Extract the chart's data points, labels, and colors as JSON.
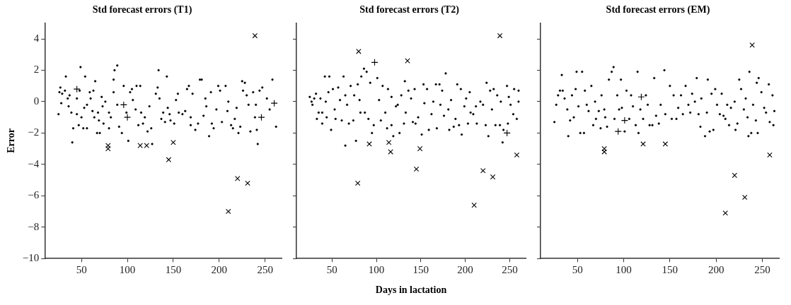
{
  "chart_data": [
    {
      "type": "scatter",
      "title": "Std forecast errors (T1)",
      "ylabel": "Error",
      "xlim": [
        10,
        268
      ],
      "xticks": [
        50,
        100,
        150,
        200,
        250
      ],
      "ylim": [
        -10,
        5
      ],
      "yticks": [
        -10,
        -8,
        -6,
        -4,
        -2,
        0,
        2,
        4
      ],
      "grid": false,
      "legend": false,
      "series": [
        {
          "color": "#000000",
          "marker": "circle",
          "x": [
            25,
            27,
            26,
            29,
            28,
            33,
            32,
            35,
            36,
            37,
            39,
            40,
            41,
            45,
            45,
            47,
            49,
            48,
            50,
            52,
            53,
            54,
            56,
            56,
            59,
            60,
            62,
            63,
            64,
            65,
            67,
            68,
            69,
            70,
            72,
            73,
            74,
            76,
            80,
            80,
            82,
            85,
            85,
            86,
            89,
            89,
            91,
            94,
            96,
            99,
            101,
            103,
            105,
            106,
            109,
            110,
            112,
            114,
            115,
            117,
            119,
            122,
            124,
            126,
            127,
            131,
            134,
            133,
            135,
            137,
            139,
            141,
            143,
            144,
            146,
            147,
            151,
            153,
            155,
            156,
            160,
            163,
            165,
            167,
            169,
            169,
            171,
            174,
            177,
            179,
            181,
            183,
            185,
            186,
            189,
            191,
            192,
            194,
            197,
            199,
            201,
            203,
            207,
            209,
            210,
            213,
            215,
            217,
            219,
            221,
            223,
            225,
            226,
            228,
            230,
            232,
            234,
            237,
            239,
            240,
            241,
            242,
            244,
            247,
            252,
            255,
            258,
            262
          ],
          "values": [
            -0.8,
            0.9,
            0.6,
            0.5,
            -0.1,
            1.6,
            0.7,
            0.2,
            -0.3,
            0.4,
            -0.7,
            -2.6,
            -1.7,
            0.2,
            -0.8,
            -1.5,
            2.2,
            0.7,
            -1.0,
            -1.7,
            -0.4,
            1.6,
            -0.2,
            -1.7,
            0.6,
            0.2,
            -0.6,
            0.7,
            -1.0,
            1.3,
            -2.0,
            -0.7,
            -1.2,
            -2.0,
            0.3,
            -0.3,
            -1.4,
            0.0,
            -0.7,
            -1.7,
            -1.0,
            1.4,
            0.6,
            2.0,
            2.3,
            -0.2,
            -1.6,
            -2.0,
            1.0,
            -0.7,
            -2.5,
            0.6,
            0.8,
            0.1,
            -0.5,
            1.0,
            -1.5,
            1.0,
            -0.7,
            -1.4,
            -1.0,
            -1.9,
            -0.3,
            -1.7,
            -2.7,
            0.5,
            2.0,
            0.9,
            0.2,
            -1.1,
            -0.7,
            -1.3,
            1.6,
            -0.4,
            -0.8,
            -1.2,
            -1.4,
            0.1,
            0.5,
            -0.7,
            -0.8,
            -0.6,
            0.8,
            1.0,
            -1.0,
            -1.5,
            0.5,
            -1.8,
            -1.4,
            1.4,
            1.4,
            -0.9,
            0.2,
            -0.3,
            -2.2,
            0.6,
            -1.4,
            -1.7,
            -0.5,
            1.0,
            0.7,
            -1.3,
            1.0,
            -0.6,
            0.0,
            -1.5,
            -1.7,
            -1.1,
            -0.4,
            -2.0,
            -1.6,
            1.3,
            0.7,
            1.2,
            0.4,
            -0.2,
            -1.9,
            0.6,
            -1.0,
            -0.2,
            -1.8,
            -2.7,
            0.7,
            0.9,
            0.2,
            -0.5,
            1.4,
            -1.6
          ]
        },
        {
          "color": "#000000",
          "marker": "cross",
          "x": [
            79,
            79,
            114,
            121,
            150,
            145,
            210,
            220,
            231,
            239
          ],
          "values": [
            -2.8,
            -3.0,
            -2.8,
            -2.8,
            -2.6,
            -3.7,
            -7.0,
            -4.9,
            -5.2,
            4.2
          ]
        },
        {
          "color": "#000000",
          "x": [
            45,
            96,
            100,
            246,
            260
          ],
          "values": [
            0.8,
            -0.2,
            -1.0,
            -1.0,
            -0.1
          ]
        }
      ]
    },
    {
      "type": "scatter",
      "title": "Std forecast errors (T2)",
      "xlabel": "Days in lactation",
      "xlim": [
        10,
        268
      ],
      "xticks": [
        50,
        100,
        150,
        200,
        250
      ],
      "ylim": [
        -10,
        5
      ],
      "yticks": [
        -10,
        -8,
        -6,
        -4,
        -2,
        0,
        2,
        4
      ],
      "grid": false,
      "legend": false,
      "tick_labels": "x",
      "series": [
        {
          "color": "#000000",
          "marker": "circle",
          "x": [
            25,
            27,
            28,
            30,
            32,
            33,
            35,
            37,
            39,
            39,
            42,
            43,
            44,
            46,
            47,
            49,
            51,
            53,
            54,
            57,
            59,
            61,
            63,
            65,
            65,
            67,
            69,
            71,
            74,
            75,
            77,
            79,
            81,
            82,
            83,
            86,
            89,
            87,
            91,
            93,
            95,
            97,
            101,
            103,
            105,
            107,
            110,
            112,
            113,
            117,
            117,
            119,
            122,
            124,
            126,
            128,
            131,
            132,
            133,
            136,
            139,
            141,
            143,
            144,
            147,
            151,
            153,
            154,
            157,
            159,
            162,
            164,
            167,
            168,
            171,
            172,
            174,
            176,
            178,
            181,
            182,
            184,
            187,
            189,
            191,
            193,
            195,
            196,
            199,
            201,
            203,
            205,
            206,
            209,
            212,
            213,
            217,
            220,
            223,
            224,
            226,
            228,
            230,
            232,
            234,
            236,
            239,
            240,
            242,
            243,
            247,
            248,
            249,
            251,
            254,
            255,
            258,
            260,
            260
          ],
          "values": [
            0.3,
            0.0,
            -0.2,
            0.2,
            0.5,
            -1.1,
            -0.7,
            0.2,
            -0.7,
            -1.4,
            1.6,
            0.0,
            -1.0,
            0.6,
            1.6,
            -1.8,
            0.8,
            -0.5,
            -1.1,
            0.9,
            0.1,
            -1.2,
            1.6,
            0.4,
            -2.8,
            -0.2,
            -1.4,
            1.0,
            -1.2,
            0.4,
            -2.5,
            1.1,
            0.1,
            -0.7,
            1.6,
            2.1,
            1.9,
            -0.7,
            -1.1,
            1.2,
            -2.0,
            -1.5,
            1.5,
            0.1,
            -1.2,
            1.0,
            -0.7,
            -1.7,
            0.8,
            -1.5,
            0.3,
            -2.2,
            -0.3,
            -0.2,
            -2.0,
            0.4,
            -1.4,
            1.3,
            -0.7,
            0.7,
            0.2,
            -1.3,
            0.8,
            -1.4,
            -1.0,
            -2.1,
            1.1,
            -0.1,
            0.8,
            -1.8,
            -0.8,
            0.0,
            1.1,
            -1.7,
            1.1,
            -0.2,
            0.7,
            -0.9,
            1.8,
            -0.5,
            -1.8,
            0.1,
            -1.6,
            -1.1,
            1.1,
            -1.5,
            0.8,
            -2.1,
            -0.3,
            0.2,
            -1.4,
            0.6,
            -0.7,
            -0.8,
            -0.3,
            -1.4,
            0.0,
            -0.2,
            -1.5,
            1.2,
            -2.2,
            0.7,
            -0.5,
            0.8,
            -1.5,
            0.4,
            -1.5,
            0.0,
            -2.6,
            -1.8,
            1.0,
            -1.4,
            0.3,
            -0.2,
            -0.8,
            0.8,
            -1.1,
            0.7,
            0.0
          ]
        },
        {
          "color": "#000000",
          "marker": "cross",
          "x": [
            80,
            135,
            239,
            92,
            114,
            116,
            149,
            258,
            145,
            220,
            231,
            79,
            210
          ],
          "values": [
            3.2,
            2.6,
            4.2,
            -2.7,
            -2.6,
            -3.2,
            -3.0,
            -3.4,
            -4.3,
            -4.4,
            -4.8,
            -5.2,
            -6.6
          ]
        },
        {
          "color": "#000000",
          "x": [
            98,
            247
          ],
          "values": [
            2.5,
            -2.0
          ]
        }
      ]
    },
    {
      "type": "scatter",
      "title": "Std forecast errors (EM)",
      "xlim": [
        10,
        268
      ],
      "xticks": [
        50,
        100,
        150,
        200,
        250
      ],
      "ylim": [
        -10,
        5
      ],
      "yticks": [
        -10,
        -8,
        -6,
        -4,
        -2,
        0,
        2,
        4
      ],
      "grid": false,
      "legend": false,
      "tick_labels": "x",
      "series": [
        {
          "color": "#000000",
          "marker": "circle",
          "x": [
            25,
            27,
            29,
            31,
            33,
            34,
            36,
            39,
            40,
            42,
            44,
            46,
            48,
            49,
            51,
            53,
            55,
            57,
            58,
            60,
            62,
            65,
            67,
            69,
            70,
            73,
            75,
            76,
            79,
            80,
            82,
            84,
            87,
            89,
            90,
            93,
            95,
            97,
            98,
            101,
            103,
            106,
            108,
            110,
            113,
            115,
            116,
            118,
            121,
            124,
            126,
            128,
            131,
            133,
            135,
            138,
            140,
            144,
            145,
            150,
            152,
            154,
            157,
            159,
            162,
            164,
            167,
            170,
            172,
            174,
            177,
            179,
            181,
            183,
            184,
            188,
            190,
            191,
            193,
            195,
            197,
            199,
            201,
            204,
            206,
            208,
            210,
            212,
            214,
            216,
            220,
            221,
            223,
            225,
            227,
            230,
            232,
            234,
            235,
            236,
            238,
            240,
            243,
            244,
            245,
            246,
            249,
            252,
            254,
            257,
            258,
            261,
            262,
            263
          ],
          "values": [
            -1.3,
            -0.2,
            0.4,
            0.7,
            1.7,
            0.7,
            0.2,
            -0.5,
            -2.2,
            -1.2,
            0.4,
            -1.0,
            0.8,
            1.9,
            -0.3,
            -2.0,
            1.9,
            -2.0,
            0.7,
            -0.2,
            -0.6,
            1.0,
            -1.5,
            0.0,
            -1.1,
            -0.6,
            -1.7,
            0.4,
            -0.5,
            -1.0,
            -1.6,
            1.4,
            1.9,
            2.2,
            -1.1,
            0.4,
            -0.5,
            1.4,
            -0.4,
            -1.9,
            0.7,
            -1.1,
            0.4,
            -0.3,
            -1.5,
            1.9,
            -2.0,
            -0.5,
            -1.1,
            0.4,
            -0.2,
            -1.5,
            -1.5,
            1.5,
            -0.9,
            -1.4,
            -0.2,
            2.0,
            -0.8,
            1.0,
            -1.1,
            0.4,
            -1.1,
            -0.4,
            0.4,
            -0.8,
            1.0,
            -0.2,
            -0.7,
            0.5,
            0.0,
            1.5,
            -0.8,
            -1.6,
            0.2,
            -2.2,
            -0.7,
            1.4,
            -1.9,
            0.5,
            -1.8,
            0.8,
            -0.2,
            -0.8,
            0.5,
            -0.9,
            -1.1,
            -0.2,
            -1.5,
            -0.4,
            0.0,
            -1.8,
            -1.4,
            1.4,
            0.8,
            -0.5,
            0.2,
            -1.0,
            -2.2,
            1.9,
            -2.0,
            -0.2,
            -1.2,
            1.2,
            -2.0,
            1.5,
            0.6,
            -0.4,
            -0.7,
            1.1,
            -1.3,
            0.4,
            -1.5,
            -0.6
          ]
        },
        {
          "color": "#000000",
          "marker": "cross",
          "x": [
            79,
            79,
            121,
            145,
            239,
            258,
            220,
            231,
            210
          ],
          "values": [
            -3.0,
            -3.2,
            -2.7,
            -2.7,
            3.6,
            -3.4,
            -4.7,
            -6.1,
            -7.1
          ]
        },
        {
          "color": "#000000",
          "x": [
            119,
            101,
            94
          ],
          "values": [
            0.3,
            -1.2,
            -1.9
          ]
        }
      ]
    }
  ]
}
